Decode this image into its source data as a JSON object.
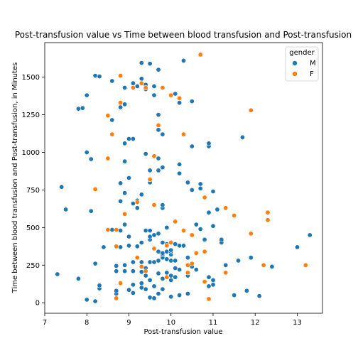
{
  "chart_data": {
    "type": "scatter",
    "title": "Post-transfusion value vs Time between blood transfusion and Post-transfusion",
    "xlabel": "Post-transfusion value",
    "ylabel": "Time between blood transfusion and Post-transfusion, in Minutes",
    "xlim": [
      7,
      13.6
    ],
    "ylim": [
      -70,
      1730
    ],
    "xticks": [
      7,
      8,
      9,
      10,
      11,
      12,
      13
    ],
    "yticks": [
      0,
      250,
      500,
      750,
      1000,
      1250,
      1500
    ],
    "grid": false,
    "legend": {
      "title": "gender",
      "placement": "top-right"
    },
    "series": [
      {
        "name": "M",
        "color": "#1f77b4",
        "points": [
          [
            7.3,
            190
          ],
          [
            7.4,
            770
          ],
          [
            7.5,
            620
          ],
          [
            7.8,
            160
          ],
          [
            7.8,
            1290
          ],
          [
            7.9,
            1295
          ],
          [
            8.0,
            20
          ],
          [
            8.0,
            1000
          ],
          [
            8.0,
            1380
          ],
          [
            8.1,
            610
          ],
          [
            8.1,
            955
          ],
          [
            8.2,
            10
          ],
          [
            8.2,
            260
          ],
          [
            8.2,
            1510
          ],
          [
            8.3,
            95
          ],
          [
            8.3,
            115
          ],
          [
            8.3,
            1505
          ],
          [
            8.4,
            370
          ],
          [
            8.6,
            485
          ],
          [
            8.6,
            1475
          ],
          [
            8.6,
            1215
          ],
          [
            8.7,
            60
          ],
          [
            8.7,
            80
          ],
          [
            8.7,
            210
          ],
          [
            8.7,
            245
          ],
          [
            8.8,
            370
          ],
          [
            8.8,
            480
          ],
          [
            8.8,
            675
          ],
          [
            8.8,
            795
          ],
          [
            8.8,
            1300
          ],
          [
            8.9,
            210
          ],
          [
            8.9,
            250
          ],
          [
            8.9,
            520
          ],
          [
            8.9,
            730
          ],
          [
            8.9,
            940
          ],
          [
            8.9,
            1060
          ],
          [
            8.9,
            1320
          ],
          [
            8.9,
            1430
          ],
          [
            9.0,
            85
          ],
          [
            9.0,
            380
          ],
          [
            9.0,
            440
          ],
          [
            9.0,
            830
          ],
          [
            9.0,
            1090
          ],
          [
            9.1,
            65
          ],
          [
            9.1,
            120
          ],
          [
            9.1,
            210
          ],
          [
            9.1,
            270
          ],
          [
            9.1,
            660
          ],
          [
            9.1,
            1090
          ],
          [
            9.1,
            1460
          ],
          [
            9.2,
            375
          ],
          [
            9.2,
            630
          ],
          [
            9.2,
            680
          ],
          [
            9.2,
            1440
          ],
          [
            9.3,
            100
          ],
          [
            9.3,
            130
          ],
          [
            9.3,
            205
          ],
          [
            9.3,
            270
          ],
          [
            9.3,
            400
          ],
          [
            9.3,
            720
          ],
          [
            9.3,
            1490
          ],
          [
            9.3,
            1595
          ],
          [
            9.4,
            90
          ],
          [
            9.4,
            180
          ],
          [
            9.4,
            230
          ],
          [
            9.4,
            480
          ],
          [
            9.4,
            990
          ],
          [
            9.4,
            1420
          ],
          [
            9.4,
            1450
          ],
          [
            9.5,
            35
          ],
          [
            9.5,
            150
          ],
          [
            9.5,
            270
          ],
          [
            9.5,
            420
          ],
          [
            9.5,
            440
          ],
          [
            9.5,
            480
          ],
          [
            9.5,
            800
          ],
          [
            9.5,
            880
          ],
          [
            9.5,
            1590
          ],
          [
            9.6,
            30
          ],
          [
            9.6,
            110
          ],
          [
            9.6,
            270
          ],
          [
            9.6,
            450
          ],
          [
            9.6,
            1380
          ],
          [
            9.6,
            1440
          ],
          [
            9.7,
            60
          ],
          [
            9.7,
            195
          ],
          [
            9.7,
            280
          ],
          [
            9.7,
            340
          ],
          [
            9.7,
            460
          ],
          [
            9.7,
            880
          ],
          [
            9.7,
            960
          ],
          [
            9.7,
            1150
          ],
          [
            9.7,
            1250
          ],
          [
            9.7,
            1550
          ],
          [
            9.8,
            90
          ],
          [
            9.8,
            160
          ],
          [
            9.8,
            300
          ],
          [
            9.8,
            320
          ],
          [
            9.8,
            330
          ],
          [
            9.8,
            400
          ],
          [
            9.8,
            630
          ],
          [
            9.8,
            650
          ],
          [
            9.8,
            900
          ],
          [
            9.8,
            1120
          ],
          [
            9.9,
            200
          ],
          [
            9.9,
            290
          ],
          [
            9.9,
            340
          ],
          [
            9.9,
            390
          ],
          [
            9.9,
            500
          ],
          [
            10.0,
            40
          ],
          [
            10.0,
            150
          ],
          [
            10.0,
            180
          ],
          [
            10.0,
            280
          ],
          [
            10.0,
            320
          ],
          [
            10.0,
            340
          ],
          [
            10.0,
            350
          ],
          [
            10.1,
            1390
          ],
          [
            10.1,
            170
          ],
          [
            10.1,
            230
          ],
          [
            10.1,
            280
          ],
          [
            10.1,
            390
          ],
          [
            10.2,
            50
          ],
          [
            10.2,
            220
          ],
          [
            10.2,
            380
          ],
          [
            10.2,
            860
          ],
          [
            10.2,
            920
          ],
          [
            10.2,
            1330
          ],
          [
            10.3,
            380
          ],
          [
            10.3,
            1610
          ],
          [
            10.4,
            60
          ],
          [
            10.4,
            180
          ],
          [
            10.4,
            300
          ],
          [
            10.4,
            800
          ],
          [
            10.5,
            240
          ],
          [
            10.5,
            750
          ],
          [
            10.5,
            1040
          ],
          [
            10.5,
            1340
          ],
          [
            10.6,
            220
          ],
          [
            10.6,
            330
          ],
          [
            10.6,
            520
          ],
          [
            10.7,
            490
          ],
          [
            10.7,
            760
          ],
          [
            10.7,
            790
          ],
          [
            10.8,
            140
          ],
          [
            10.8,
            420
          ],
          [
            10.9,
            110
          ],
          [
            10.9,
            170
          ],
          [
            10.9,
            600
          ],
          [
            10.9,
            1040
          ],
          [
            10.9,
            1060
          ],
          [
            11.0,
            120
          ],
          [
            11.0,
            150
          ],
          [
            11.0,
            510
          ],
          [
            11.0,
            740
          ],
          [
            11.1,
            620
          ],
          [
            11.2,
            400
          ],
          [
            11.2,
            420
          ],
          [
            11.3,
            250
          ],
          [
            11.5,
            50
          ],
          [
            11.6,
            280
          ],
          [
            11.7,
            1100
          ],
          [
            11.8,
            80
          ],
          [
            11.9,
            300
          ],
          [
            12.1,
            45
          ],
          [
            12.4,
            240
          ],
          [
            13.0,
            370
          ],
          [
            13.3,
            450
          ]
        ]
      },
      {
        "name": "F",
        "color": "#ff7f0e",
        "points": [
          [
            8.2,
            755
          ],
          [
            8.5,
            485
          ],
          [
            8.5,
            960
          ],
          [
            8.5,
            1245
          ],
          [
            8.6,
            1120
          ],
          [
            8.7,
            30
          ],
          [
            8.7,
            375
          ],
          [
            8.7,
            485
          ],
          [
            8.8,
            130
          ],
          [
            8.8,
            1330
          ],
          [
            8.8,
            1510
          ],
          [
            8.9,
            590
          ],
          [
            9.1,
            1430
          ],
          [
            9.2,
            300
          ],
          [
            9.2,
            670
          ],
          [
            9.3,
            240
          ],
          [
            9.3,
            1460
          ],
          [
            9.4,
            210
          ],
          [
            9.4,
            1430
          ],
          [
            9.5,
            820
          ],
          [
            9.6,
            360
          ],
          [
            9.6,
            650
          ],
          [
            9.6,
            975
          ],
          [
            9.7,
            1180
          ],
          [
            9.8,
            1430
          ],
          [
            9.9,
            170
          ],
          [
            9.9,
            380
          ],
          [
            10.0,
            400
          ],
          [
            10.0,
            1380
          ],
          [
            10.1,
            540
          ],
          [
            10.2,
            1360
          ],
          [
            10.3,
            480
          ],
          [
            10.3,
            1120
          ],
          [
            10.4,
            200
          ],
          [
            10.4,
            250
          ],
          [
            10.5,
            260
          ],
          [
            10.5,
            450
          ],
          [
            10.6,
            330
          ],
          [
            10.7,
            1650
          ],
          [
            10.8,
            340
          ],
          [
            10.8,
            700
          ],
          [
            10.8,
            140
          ],
          [
            10.9,
            25
          ],
          [
            11.3,
            200
          ],
          [
            11.3,
            630
          ],
          [
            11.5,
            580
          ],
          [
            11.9,
            460
          ],
          [
            11.9,
            1280
          ],
          [
            12.2,
            250
          ],
          [
            12.3,
            550
          ],
          [
            12.3,
            600
          ],
          [
            13.2,
            250
          ]
        ]
      }
    ]
  }
}
